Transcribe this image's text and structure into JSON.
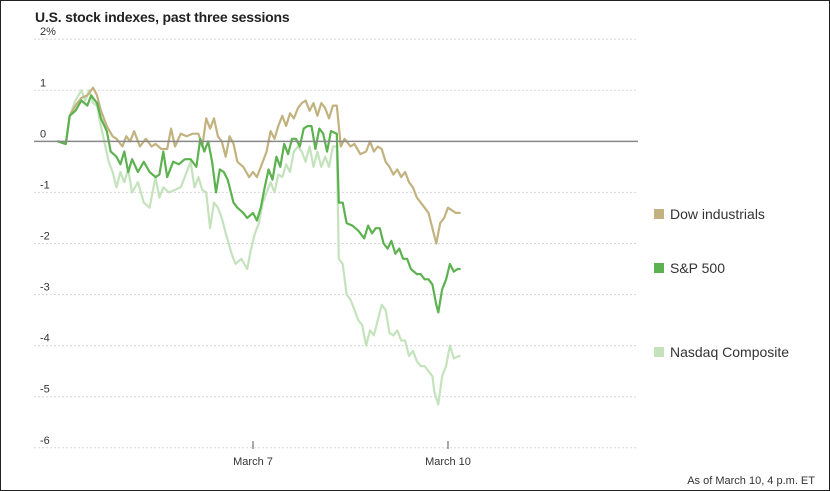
{
  "chart_data": {
    "type": "line",
    "title": "U.S. stock indexes, past three sessions",
    "footnote": "As of March 10, 4 p.m. ET",
    "y_axis": {
      "min": -6.2,
      "max": 2.2,
      "ticks": [
        {
          "value": 2,
          "label": "2%"
        },
        {
          "value": 1,
          "label": "1"
        },
        {
          "value": 0,
          "label": "0"
        },
        {
          "value": -1,
          "label": "-1"
        },
        {
          "value": -2,
          "label": "-2"
        },
        {
          "value": -3,
          "label": "-3"
        },
        {
          "value": -4,
          "label": "-4"
        },
        {
          "value": -5,
          "label": "-5"
        },
        {
          "value": -6,
          "label": "-6"
        }
      ]
    },
    "x_axis": {
      "min": 0,
      "max": 3,
      "ticks": [
        {
          "value": 1,
          "label": "March 7"
        },
        {
          "value": 2,
          "label": "March 10"
        }
      ]
    },
    "grid": {
      "horizontal": true,
      "dashed": true
    },
    "legend_placement": "right",
    "series": [
      {
        "name": "Dow industrials",
        "color": "#c2b27f",
        "points": [
          [
            0,
            0
          ],
          [
            0.04,
            -0.05
          ],
          [
            0.06,
            0.5
          ],
          [
            0.09,
            0.7
          ],
          [
            0.12,
            0.85
          ],
          [
            0.15,
            0.9
          ],
          [
            0.18,
            1.05
          ],
          [
            0.2,
            0.9
          ],
          [
            0.22,
            0.6
          ],
          [
            0.25,
            0.3
          ],
          [
            0.28,
            0.1
          ],
          [
            0.3,
            0.05
          ],
          [
            0.33,
            -0.1
          ],
          [
            0.35,
            0.1
          ],
          [
            0.37,
            0
          ],
          [
            0.39,
            0.2
          ],
          [
            0.42,
            -0.1
          ],
          [
            0.45,
            0.05
          ],
          [
            0.48,
            -0.1
          ],
          [
            0.5,
            -0.05
          ],
          [
            0.53,
            -0.15
          ],
          [
            0.56,
            -0.15
          ],
          [
            0.58,
            0.25
          ],
          [
            0.6,
            -0.1
          ],
          [
            0.63,
            0.15
          ],
          [
            0.66,
            0.1
          ],
          [
            0.69,
            0.15
          ],
          [
            0.72,
            0.15
          ],
          [
            0.74,
            -0.1
          ],
          [
            0.76,
            0.45
          ],
          [
            0.78,
            0.25
          ],
          [
            0.8,
            0.45
          ],
          [
            0.82,
            0.1
          ],
          [
            0.84,
            0
          ],
          [
            0.86,
            -0.3
          ],
          [
            0.88,
            0.1
          ],
          [
            0.9,
            -0.05
          ],
          [
            0.92,
            -0.4
          ],
          [
            0.95,
            -0.5
          ],
          [
            0.98,
            -0.7
          ],
          [
            1.0,
            -0.6
          ],
          [
            1.02,
            -0.7
          ],
          [
            1.04,
            -0.5
          ],
          [
            1.07,
            -0.2
          ],
          [
            1.09,
            0.2
          ],
          [
            1.11,
            0.05
          ],
          [
            1.13,
            0.3
          ],
          [
            1.15,
            0.5
          ],
          [
            1.17,
            0.3
          ],
          [
            1.19,
            0.55
          ],
          [
            1.21,
            0.45
          ],
          [
            1.23,
            0.65
          ],
          [
            1.25,
            0.75
          ],
          [
            1.27,
            0.8
          ],
          [
            1.29,
            0.6
          ],
          [
            1.31,
            0.75
          ],
          [
            1.33,
            0.5
          ],
          [
            1.35,
            0.75
          ],
          [
            1.37,
            0.65
          ],
          [
            1.39,
            0.45
          ],
          [
            1.41,
            0.7
          ],
          [
            1.43,
            0.7
          ],
          [
            1.45,
            -0.1
          ],
          [
            1.47,
            0.05
          ],
          [
            1.5,
            -0.1
          ],
          [
            1.52,
            -0.05
          ],
          [
            1.55,
            -0.25
          ],
          [
            1.58,
            -0.2
          ],
          [
            1.6,
            0
          ],
          [
            1.62,
            -0.2
          ],
          [
            1.64,
            -0.1
          ],
          [
            1.66,
            -0.15
          ],
          [
            1.68,
            -0.4
          ],
          [
            1.7,
            -0.5
          ],
          [
            1.72,
            -0.65
          ],
          [
            1.74,
            -0.55
          ],
          [
            1.76,
            -0.7
          ],
          [
            1.78,
            -0.6
          ],
          [
            1.8,
            -0.8
          ],
          [
            1.82,
            -0.9
          ],
          [
            1.84,
            -1.1
          ],
          [
            1.86,
            -1.2
          ],
          [
            1.88,
            -1.3
          ],
          [
            1.9,
            -1.4
          ],
          [
            1.92,
            -1.7
          ],
          [
            1.94,
            -2.0
          ],
          [
            1.96,
            -1.6
          ],
          [
            1.98,
            -1.5
          ],
          [
            2.0,
            -1.3
          ],
          [
            2.02,
            -1.35
          ],
          [
            2.04,
            -1.4
          ],
          [
            2.06,
            -1.4
          ]
        ]
      },
      {
        "name": "S&P 500",
        "color": "#5cb24f",
        "points": [
          [
            0,
            0
          ],
          [
            0.04,
            -0.05
          ],
          [
            0.06,
            0.5
          ],
          [
            0.09,
            0.6
          ],
          [
            0.12,
            0.8
          ],
          [
            0.15,
            0.7
          ],
          [
            0.17,
            0.9
          ],
          [
            0.2,
            0.75
          ],
          [
            0.22,
            0.45
          ],
          [
            0.25,
            0.2
          ],
          [
            0.27,
            -0.2
          ],
          [
            0.3,
            -0.3
          ],
          [
            0.32,
            -0.45
          ],
          [
            0.34,
            -0.2
          ],
          [
            0.36,
            -0.6
          ],
          [
            0.38,
            -0.35
          ],
          [
            0.41,
            -0.6
          ],
          [
            0.44,
            -0.4
          ],
          [
            0.47,
            -0.6
          ],
          [
            0.5,
            -0.7
          ],
          [
            0.52,
            -0.65
          ],
          [
            0.54,
            -0.2
          ],
          [
            0.56,
            -0.7
          ],
          [
            0.59,
            -0.4
          ],
          [
            0.62,
            -0.45
          ],
          [
            0.65,
            -0.35
          ],
          [
            0.68,
            -0.35
          ],
          [
            0.71,
            -0.5
          ],
          [
            0.73,
            0.05
          ],
          [
            0.75,
            -0.2
          ],
          [
            0.77,
            0
          ],
          [
            0.79,
            -0.4
          ],
          [
            0.81,
            -1.0
          ],
          [
            0.83,
            -0.55
          ],
          [
            0.85,
            -0.6
          ],
          [
            0.87,
            -0.75
          ],
          [
            0.9,
            -1.2
          ],
          [
            0.92,
            -1.3
          ],
          [
            0.95,
            -1.4
          ],
          [
            0.97,
            -1.5
          ],
          [
            1.0,
            -1.4
          ],
          [
            1.02,
            -1.55
          ],
          [
            1.04,
            -1.3
          ],
          [
            1.06,
            -0.9
          ],
          [
            1.08,
            -0.55
          ],
          [
            1.1,
            -0.75
          ],
          [
            1.12,
            -0.3
          ],
          [
            1.14,
            -0.5
          ],
          [
            1.16,
            -0.05
          ],
          [
            1.18,
            -0.25
          ],
          [
            1.2,
            0.05
          ],
          [
            1.22,
            0.05
          ],
          [
            1.24,
            -0.1
          ],
          [
            1.26,
            0.25
          ],
          [
            1.28,
            0.3
          ],
          [
            1.3,
            0.3
          ],
          [
            1.32,
            -0.15
          ],
          [
            1.34,
            0.25
          ],
          [
            1.36,
            0.15
          ],
          [
            1.38,
            -0.2
          ],
          [
            1.4,
            0.2
          ],
          [
            1.43,
            0.15
          ],
          [
            1.44,
            -1.2
          ],
          [
            1.46,
            -1.2
          ],
          [
            1.48,
            -1.6
          ],
          [
            1.51,
            -1.65
          ],
          [
            1.54,
            -1.75
          ],
          [
            1.57,
            -1.9
          ],
          [
            1.59,
            -1.65
          ],
          [
            1.61,
            -1.8
          ],
          [
            1.63,
            -1.7
          ],
          [
            1.65,
            -1.7
          ],
          [
            1.67,
            -2.0
          ],
          [
            1.69,
            -2.1
          ],
          [
            1.71,
            -1.95
          ],
          [
            1.73,
            -2.2
          ],
          [
            1.75,
            -2.1
          ],
          [
            1.77,
            -2.3
          ],
          [
            1.79,
            -2.3
          ],
          [
            1.81,
            -2.5
          ],
          [
            1.84,
            -2.6
          ],
          [
            1.86,
            -2.6
          ],
          [
            1.88,
            -2.7
          ],
          [
            1.9,
            -2.7
          ],
          [
            1.92,
            -2.8
          ],
          [
            1.94,
            -3.2
          ],
          [
            1.95,
            -3.35
          ],
          [
            1.97,
            -2.9
          ],
          [
            1.99,
            -2.7
          ],
          [
            2.01,
            -2.4
          ],
          [
            2.03,
            -2.55
          ],
          [
            2.05,
            -2.5
          ],
          [
            2.06,
            -2.5
          ]
        ]
      },
      {
        "name": "Nasdaq Composite",
        "color": "#c4e3bd",
        "points": [
          [
            0,
            0
          ],
          [
            0.04,
            -0.05
          ],
          [
            0.06,
            0.5
          ],
          [
            0.09,
            0.8
          ],
          [
            0.12,
            1.0
          ],
          [
            0.14,
            0.8
          ],
          [
            0.16,
            1.0
          ],
          [
            0.18,
            0.75
          ],
          [
            0.2,
            0.7
          ],
          [
            0.22,
            0.3
          ],
          [
            0.24,
            -0.05
          ],
          [
            0.26,
            -0.4
          ],
          [
            0.28,
            -0.6
          ],
          [
            0.3,
            -0.9
          ],
          [
            0.32,
            -0.6
          ],
          [
            0.34,
            -0.8
          ],
          [
            0.36,
            -0.55
          ],
          [
            0.38,
            -1.0
          ],
          [
            0.41,
            -0.8
          ],
          [
            0.44,
            -1.2
          ],
          [
            0.47,
            -1.3
          ],
          [
            0.5,
            -0.7
          ],
          [
            0.52,
            -1.1
          ],
          [
            0.54,
            -0.9
          ],
          [
            0.57,
            -1.0
          ],
          [
            0.6,
            -0.95
          ],
          [
            0.63,
            -0.9
          ],
          [
            0.66,
            -0.6
          ],
          [
            0.68,
            -0.4
          ],
          [
            0.7,
            -0.9
          ],
          [
            0.72,
            -0.7
          ],
          [
            0.74,
            -0.95
          ],
          [
            0.76,
            -1.0
          ],
          [
            0.78,
            -1.7
          ],
          [
            0.8,
            -1.2
          ],
          [
            0.82,
            -1.3
          ],
          [
            0.84,
            -1.5
          ],
          [
            0.86,
            -1.8
          ],
          [
            0.89,
            -2.2
          ],
          [
            0.91,
            -2.4
          ],
          [
            0.94,
            -2.3
          ],
          [
            0.97,
            -2.5
          ],
          [
            0.99,
            -2.1
          ],
          [
            1.01,
            -1.8
          ],
          [
            1.03,
            -1.6
          ],
          [
            1.05,
            -1.2
          ],
          [
            1.07,
            -1.0
          ],
          [
            1.09,
            -0.8
          ],
          [
            1.11,
            -1.0
          ],
          [
            1.13,
            -0.65
          ],
          [
            1.15,
            -0.7
          ],
          [
            1.17,
            -0.45
          ],
          [
            1.19,
            -0.6
          ],
          [
            1.21,
            -0.2
          ],
          [
            1.23,
            -0.1
          ],
          [
            1.25,
            -0.2
          ],
          [
            1.27,
            -0.4
          ],
          [
            1.29,
            -0.1
          ],
          [
            1.31,
            -0.5
          ],
          [
            1.33,
            -0.2
          ],
          [
            1.35,
            -0.5
          ],
          [
            1.37,
            -0.3
          ],
          [
            1.39,
            -0.5
          ],
          [
            1.41,
            -0.1
          ],
          [
            1.43,
            -0.1
          ],
          [
            1.44,
            -2.3
          ],
          [
            1.46,
            -2.4
          ],
          [
            1.48,
            -3.0
          ],
          [
            1.5,
            -3.1
          ],
          [
            1.52,
            -3.3
          ],
          [
            1.54,
            -3.5
          ],
          [
            1.56,
            -3.6
          ],
          [
            1.58,
            -4.0
          ],
          [
            1.6,
            -3.7
          ],
          [
            1.62,
            -3.8
          ],
          [
            1.64,
            -3.5
          ],
          [
            1.66,
            -3.2
          ],
          [
            1.68,
            -3.3
          ],
          [
            1.7,
            -3.75
          ],
          [
            1.72,
            -3.8
          ],
          [
            1.74,
            -3.7
          ],
          [
            1.76,
            -3.9
          ],
          [
            1.78,
            -3.9
          ],
          [
            1.8,
            -4.2
          ],
          [
            1.82,
            -4.1
          ],
          [
            1.84,
            -4.3
          ],
          [
            1.86,
            -4.4
          ],
          [
            1.88,
            -4.4
          ],
          [
            1.9,
            -4.5
          ],
          [
            1.92,
            -4.6
          ],
          [
            1.93,
            -4.9
          ],
          [
            1.95,
            -5.15
          ],
          [
            1.97,
            -4.6
          ],
          [
            1.99,
            -4.4
          ],
          [
            2.01,
            -4.0
          ],
          [
            2.03,
            -4.25
          ],
          [
            2.06,
            -4.2
          ]
        ]
      }
    ]
  }
}
